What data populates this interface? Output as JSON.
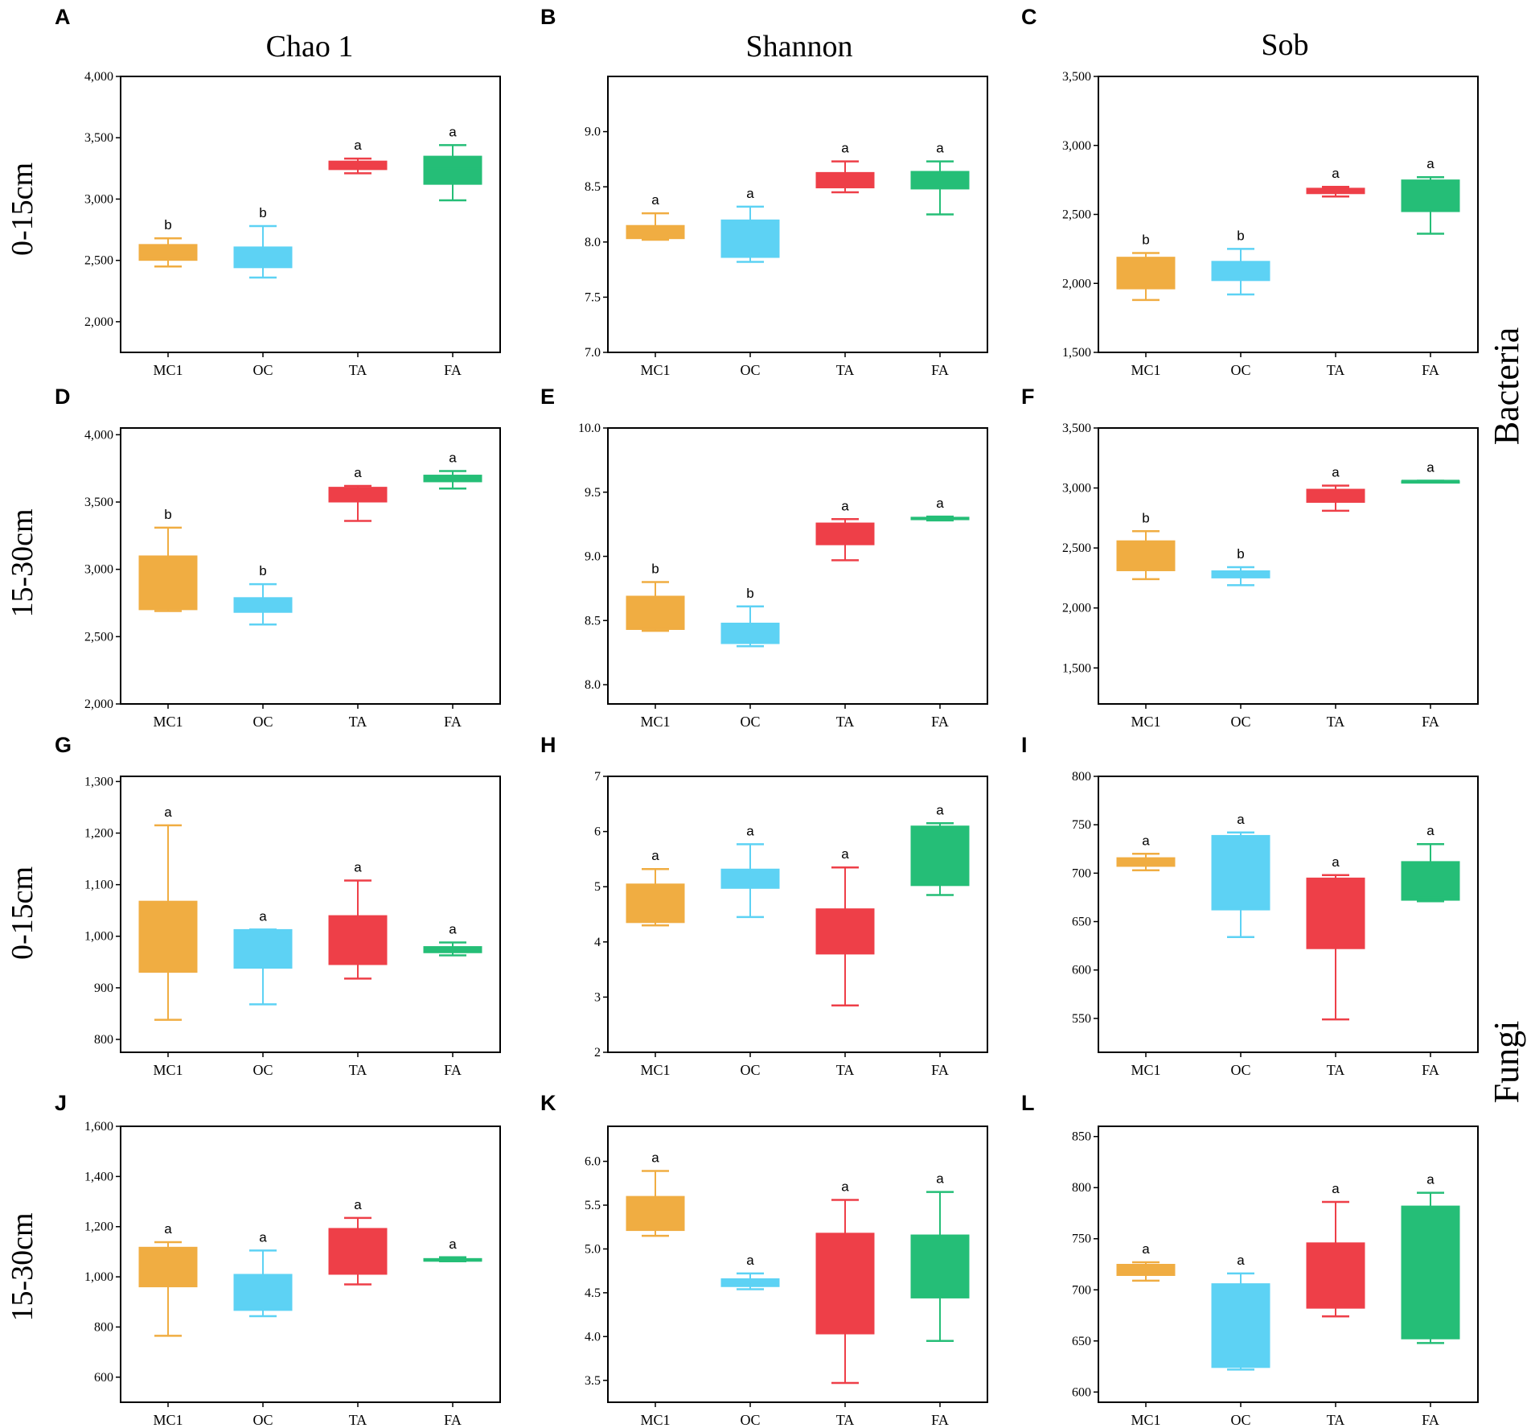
{
  "column_titles": [
    "Chao 1",
    "Shannon",
    "Sob"
  ],
  "row_labels": [
    "0-15cm",
    "15-30cm",
    "0-15cm",
    "15-30cm"
  ],
  "kingdom_labels": [
    "Bacteria",
    "Fungi"
  ],
  "group_colors": {
    "MC1": "#F0AD42",
    "OC": "#5DD2F4",
    "TA": "#EE3F48",
    "FA": "#25BE77"
  },
  "chart_data": [
    {
      "panel": "A",
      "type": "box",
      "metric": "Chao 1",
      "depth": "0-15cm",
      "kingdom": "Bacteria",
      "categories": [
        "MC1",
        "OC",
        "TA",
        "FA"
      ],
      "ylim": [
        1750,
        4000
      ],
      "yticks": [
        2000,
        2500,
        3000,
        3500,
        4000
      ],
      "ytick_labels": [
        "2,000",
        "2,500",
        "3,000",
        "3,500",
        "4,000"
      ],
      "boxes": [
        {
          "group": "MC1",
          "min": 2450,
          "q1": 2500,
          "median": 2510,
          "q3": 2630,
          "max": 2680,
          "letter": "b"
        },
        {
          "group": "OC",
          "min": 2360,
          "q1": 2440,
          "median": 2450,
          "q3": 2610,
          "max": 2780,
          "letter": "b"
        },
        {
          "group": "TA",
          "min": 3210,
          "q1": 3240,
          "median": 3260,
          "q3": 3310,
          "max": 3330,
          "letter": "a"
        },
        {
          "group": "FA",
          "min": 2990,
          "q1": 3120,
          "median": 3250,
          "q3": 3350,
          "max": 3440,
          "letter": "a"
        }
      ]
    },
    {
      "panel": "B",
      "type": "box",
      "metric": "Shannon",
      "depth": "0-15cm",
      "kingdom": "Bacteria",
      "categories": [
        "MC1",
        "OC",
        "TA",
        "FA"
      ],
      "ylim": [
        7.0,
        9.5
      ],
      "yticks": [
        7.0,
        7.5,
        8.0,
        8.5,
        9.0
      ],
      "ytick_labels": [
        "7.0",
        "7.5",
        "8.0",
        "8.5",
        "9.0"
      ],
      "boxes": [
        {
          "group": "MC1",
          "min": 8.02,
          "q1": 8.03,
          "median": 8.04,
          "q3": 8.15,
          "max": 8.26,
          "letter": "a"
        },
        {
          "group": "OC",
          "min": 7.82,
          "q1": 7.86,
          "median": 7.88,
          "q3": 8.2,
          "max": 8.32,
          "letter": "a"
        },
        {
          "group": "TA",
          "min": 8.45,
          "q1": 8.49,
          "median": 8.5,
          "q3": 8.63,
          "max": 8.73,
          "letter": "a"
        },
        {
          "group": "FA",
          "min": 8.25,
          "q1": 8.48,
          "median": 8.5,
          "q3": 8.64,
          "max": 8.73,
          "letter": "a"
        }
      ]
    },
    {
      "panel": "C",
      "type": "box",
      "metric": "Sob",
      "depth": "0-15cm",
      "kingdom": "Bacteria",
      "categories": [
        "MC1",
        "OC",
        "TA",
        "FA"
      ],
      "ylim": [
        1500,
        3500
      ],
      "yticks": [
        1500,
        2000,
        2500,
        3000,
        3500
      ],
      "ytick_labels": [
        "1,500",
        "2,000",
        "2,500",
        "3,000",
        "3,500"
      ],
      "boxes": [
        {
          "group": "MC1",
          "min": 1880,
          "q1": 1960,
          "median": 1970,
          "q3": 2190,
          "max": 2220,
          "letter": "b"
        },
        {
          "group": "OC",
          "min": 1920,
          "q1": 2020,
          "median": 2030,
          "q3": 2160,
          "max": 2250,
          "letter": "b"
        },
        {
          "group": "TA",
          "min": 2630,
          "q1": 2650,
          "median": 2660,
          "q3": 2690,
          "max": 2700,
          "letter": "a"
        },
        {
          "group": "FA",
          "min": 2360,
          "q1": 2520,
          "median": 2530,
          "q3": 2750,
          "max": 2770,
          "letter": "a"
        }
      ]
    },
    {
      "panel": "D",
      "type": "box",
      "metric": "Chao 1",
      "depth": "15-30cm",
      "kingdom": "Bacteria",
      "categories": [
        "MC1",
        "OC",
        "TA",
        "FA"
      ],
      "ylim": [
        2000,
        4050
      ],
      "yticks": [
        2000,
        2500,
        3000,
        3500,
        4000
      ],
      "ytick_labels": [
        "2,000",
        "2,500",
        "3,000",
        "3,500",
        "4,000"
      ],
      "boxes": [
        {
          "group": "MC1",
          "min": 2690,
          "q1": 2700,
          "median": 2710,
          "q3": 3100,
          "max": 3310,
          "letter": "b"
        },
        {
          "group": "OC",
          "min": 2590,
          "q1": 2680,
          "median": 2690,
          "q3": 2790,
          "max": 2890,
          "letter": "b"
        },
        {
          "group": "TA",
          "min": 3360,
          "q1": 3500,
          "median": 3510,
          "q3": 3610,
          "max": 3620,
          "letter": "a"
        },
        {
          "group": "FA",
          "min": 3600,
          "q1": 3650,
          "median": 3660,
          "q3": 3700,
          "max": 3730,
          "letter": "a"
        }
      ]
    },
    {
      "panel": "E",
      "type": "box",
      "metric": "Shannon",
      "depth": "15-30cm",
      "kingdom": "Bacteria",
      "categories": [
        "MC1",
        "OC",
        "TA",
        "FA"
      ],
      "ylim": [
        7.85,
        10.0
      ],
      "yticks": [
        8.0,
        8.5,
        9.0,
        9.5,
        10.0
      ],
      "ytick_labels": [
        "8.0",
        "8.5",
        "9.0",
        "9.5",
        "10.0"
      ],
      "boxes": [
        {
          "group": "MC1",
          "min": 8.42,
          "q1": 8.43,
          "median": 8.44,
          "q3": 8.69,
          "max": 8.8,
          "letter": "b"
        },
        {
          "group": "OC",
          "min": 8.3,
          "q1": 8.32,
          "median": 8.33,
          "q3": 8.48,
          "max": 8.61,
          "letter": "b"
        },
        {
          "group": "TA",
          "min": 8.97,
          "q1": 9.09,
          "median": 9.1,
          "q3": 9.26,
          "max": 9.29,
          "letter": "a"
        },
        {
          "group": "FA",
          "min": 9.28,
          "q1": 9.285,
          "median": 9.29,
          "q3": 9.305,
          "max": 9.31,
          "letter": "a"
        }
      ]
    },
    {
      "panel": "F",
      "type": "box",
      "metric": "Sob",
      "depth": "15-30cm",
      "kingdom": "Bacteria",
      "categories": [
        "MC1",
        "OC",
        "TA",
        "FA"
      ],
      "ylim": [
        1200,
        3500
      ],
      "yticks": [
        1500,
        2000,
        2500,
        3000,
        3500
      ],
      "ytick_labels": [
        "1,500",
        "2,000",
        "2,500",
        "3,000",
        "3,500"
      ],
      "boxes": [
        {
          "group": "MC1",
          "min": 2240,
          "q1": 2310,
          "median": 2320,
          "q3": 2560,
          "max": 2640,
          "letter": "b"
        },
        {
          "group": "OC",
          "min": 2190,
          "q1": 2250,
          "median": 2260,
          "q3": 2310,
          "max": 2340,
          "letter": "b"
        },
        {
          "group": "TA",
          "min": 2810,
          "q1": 2880,
          "median": 2890,
          "q3": 2990,
          "max": 3020,
          "letter": "a"
        },
        {
          "group": "FA",
          "min": 3060,
          "q1": 3060,
          "median": 3060,
          "q3": 3060,
          "max": 3060,
          "letter": "a"
        }
      ]
    },
    {
      "panel": "G",
      "type": "box",
      "metric": "Chao 1",
      "depth": "0-15cm",
      "kingdom": "Fungi",
      "categories": [
        "MC1",
        "OC",
        "TA",
        "FA"
      ],
      "ylim": [
        775,
        1310
      ],
      "yticks": [
        800,
        900,
        1000,
        1100,
        1200,
        1300
      ],
      "ytick_labels": [
        "800",
        "900",
        "1,000",
        "1,100",
        "1,200",
        "1,300"
      ],
      "boxes": [
        {
          "group": "MC1",
          "min": 838,
          "q1": 930,
          "median": 935,
          "q3": 1068,
          "max": 1215,
          "letter": "a"
        },
        {
          "group": "OC",
          "min": 868,
          "q1": 938,
          "median": 942,
          "q3": 1013,
          "max": 1013,
          "letter": "a"
        },
        {
          "group": "TA",
          "min": 918,
          "q1": 945,
          "median": 950,
          "q3": 1040,
          "max": 1108,
          "letter": "a"
        },
        {
          "group": "FA",
          "min": 963,
          "q1": 968,
          "median": 972,
          "q3": 980,
          "max": 988,
          "letter": "a"
        }
      ]
    },
    {
      "panel": "H",
      "type": "box",
      "metric": "Shannon",
      "depth": "0-15cm",
      "kingdom": "Fungi",
      "categories": [
        "MC1",
        "OC",
        "TA",
        "FA"
      ],
      "ylim": [
        2,
        7
      ],
      "yticks": [
        2,
        3,
        4,
        5,
        6,
        7
      ],
      "ytick_labels": [
        "2",
        "3",
        "4",
        "5",
        "6",
        "7"
      ],
      "boxes": [
        {
          "group": "MC1",
          "min": 4.3,
          "q1": 4.35,
          "median": 4.38,
          "q3": 5.05,
          "max": 5.32,
          "letter": "a"
        },
        {
          "group": "OC",
          "min": 4.45,
          "q1": 4.97,
          "median": 5.0,
          "q3": 5.32,
          "max": 5.77,
          "letter": "a"
        },
        {
          "group": "TA",
          "min": 2.85,
          "q1": 3.78,
          "median": 3.82,
          "q3": 4.6,
          "max": 5.35,
          "letter": "a"
        },
        {
          "group": "FA",
          "min": 4.85,
          "q1": 5.02,
          "median": 5.05,
          "q3": 6.1,
          "max": 6.15,
          "letter": "a"
        }
      ]
    },
    {
      "panel": "I",
      "type": "box",
      "metric": "Sob",
      "depth": "0-15cm",
      "kingdom": "Fungi",
      "categories": [
        "MC1",
        "OC",
        "TA",
        "FA"
      ],
      "ylim": [
        515,
        800
      ],
      "yticks": [
        550,
        600,
        650,
        700,
        750,
        800
      ],
      "ytick_labels": [
        "550",
        "600",
        "650",
        "700",
        "750",
        "800"
      ],
      "boxes": [
        {
          "group": "MC1",
          "min": 703,
          "q1": 707,
          "median": 709,
          "q3": 716,
          "max": 720,
          "letter": "a"
        },
        {
          "group": "OC",
          "min": 634,
          "q1": 662,
          "median": 665,
          "q3": 739,
          "max": 742,
          "letter": "a"
        },
        {
          "group": "TA",
          "min": 549,
          "q1": 622,
          "median": 625,
          "q3": 695,
          "max": 698,
          "letter": "a"
        },
        {
          "group": "FA",
          "min": 671,
          "q1": 672,
          "median": 675,
          "q3": 712,
          "max": 730,
          "letter": "a"
        }
      ]
    },
    {
      "panel": "J",
      "type": "box",
      "metric": "Chao 1",
      "depth": "15-30cm",
      "kingdom": "Fungi",
      "categories": [
        "MC1",
        "OC",
        "TA",
        "FA"
      ],
      "ylim": [
        500,
        1600
      ],
      "yticks": [
        600,
        800,
        1000,
        1200,
        1400,
        1600
      ],
      "ytick_labels": [
        "600",
        "800",
        "1,000",
        "1,200",
        "1,400",
        "1,600"
      ],
      "boxes": [
        {
          "group": "MC1",
          "min": 765,
          "q1": 960,
          "median": 965,
          "q3": 1118,
          "max": 1138,
          "letter": "a"
        },
        {
          "group": "OC",
          "min": 843,
          "q1": 866,
          "median": 870,
          "q3": 1010,
          "max": 1105,
          "letter": "a"
        },
        {
          "group": "TA",
          "min": 970,
          "q1": 1010,
          "median": 1015,
          "q3": 1193,
          "max": 1235,
          "letter": "a"
        },
        {
          "group": "FA",
          "min": 1062,
          "q1": 1062,
          "median": 1065,
          "q3": 1073,
          "max": 1078,
          "letter": "a"
        }
      ]
    },
    {
      "panel": "K",
      "type": "box",
      "metric": "Shannon",
      "depth": "15-30cm",
      "kingdom": "Fungi",
      "categories": [
        "MC1",
        "OC",
        "TA",
        "FA"
      ],
      "ylim": [
        3.25,
        6.4
      ],
      "yticks": [
        3.5,
        4.0,
        4.5,
        5.0,
        5.5,
        6.0
      ],
      "ytick_labels": [
        "3.5",
        "4.0",
        "4.5",
        "5.0",
        "5.5",
        "6.0"
      ],
      "boxes": [
        {
          "group": "MC1",
          "min": 5.15,
          "q1": 5.21,
          "median": 5.23,
          "q3": 5.6,
          "max": 5.89,
          "letter": "a"
        },
        {
          "group": "OC",
          "min": 4.54,
          "q1": 4.57,
          "median": 4.59,
          "q3": 4.66,
          "max": 4.72,
          "letter": "a"
        },
        {
          "group": "TA",
          "min": 3.47,
          "q1": 4.03,
          "median": 4.06,
          "q3": 5.18,
          "max": 5.56,
          "letter": "a"
        },
        {
          "group": "FA",
          "min": 3.95,
          "q1": 4.44,
          "median": 4.47,
          "q3": 5.16,
          "max": 5.65,
          "letter": "a"
        }
      ]
    },
    {
      "panel": "L",
      "type": "box",
      "metric": "Sob",
      "depth": "15-30cm",
      "kingdom": "Fungi",
      "categories": [
        "MC1",
        "OC",
        "TA",
        "FA"
      ],
      "ylim": [
        590,
        860
      ],
      "yticks": [
        600,
        650,
        700,
        750,
        800,
        850
      ],
      "ytick_labels": [
        "600",
        "650",
        "700",
        "750",
        "800",
        "850"
      ],
      "boxes": [
        {
          "group": "MC1",
          "min": 709,
          "q1": 714,
          "median": 716,
          "q3": 725,
          "max": 727,
          "letter": "a"
        },
        {
          "group": "OC",
          "min": 622,
          "q1": 624,
          "median": 626,
          "q3": 706,
          "max": 716,
          "letter": "a"
        },
        {
          "group": "TA",
          "min": 674,
          "q1": 682,
          "median": 685,
          "q3": 746,
          "max": 786,
          "letter": "a"
        },
        {
          "group": "FA",
          "min": 648,
          "q1": 652,
          "median": 655,
          "q3": 782,
          "max": 795,
          "letter": "a"
        }
      ]
    }
  ]
}
